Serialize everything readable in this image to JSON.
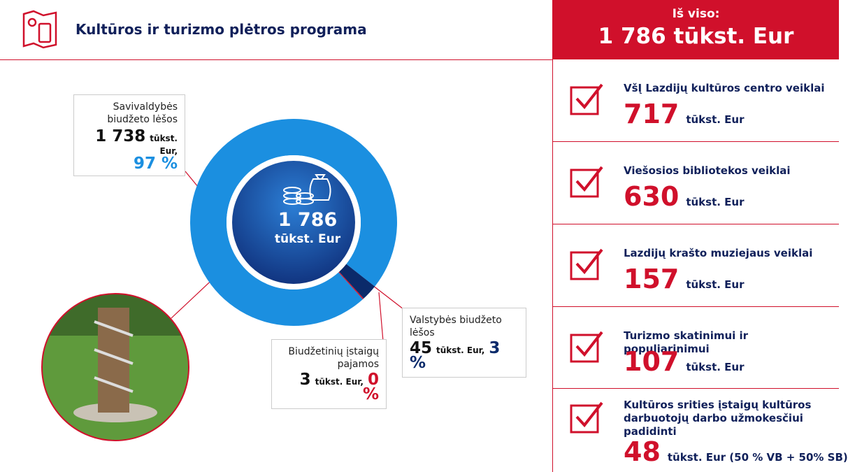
{
  "header": {
    "title": "Kultūros ir turizmo plėtros programa"
  },
  "summary": {
    "label": "Iš viso:",
    "amount": "1 786 tūkst. Eur"
  },
  "chart_data": {
    "type": "pie",
    "categories": [
      "Savivaldybės biudžeto lėšos",
      "Valstybės biudžeto lėšos",
      "Biudžetinių įstaigų pajamos"
    ],
    "values": [
      1738,
      45,
      3
    ],
    "value_labels": [
      "1 738",
      "45",
      "3"
    ],
    "unit_label": "tūkst. Eur,",
    "shares": [
      97,
      3,
      0
    ],
    "share_labels": [
      "97 %",
      "3 %",
      "0 %"
    ],
    "colors": [
      "#1b8fe0",
      "#0b2a6a",
      "#d0102b"
    ],
    "total": {
      "value": 1786,
      "label": "1 786"
    },
    "total_unit": "tūkst. Eur"
  },
  "items": [
    {
      "label": "VšĮ Lazdijų kultūros centro veiklai",
      "amount": "717",
      "unit": "tūkst. Eur"
    },
    {
      "label": "Viešosios bibliotekos veiklai",
      "amount": "630",
      "unit": "tūkst. Eur"
    },
    {
      "label": "Lazdijų krašto muziejaus veiklai",
      "amount": "157",
      "unit": "tūkst. Eur"
    },
    {
      "label": "Turizmo skatinimui ir populiarinimui",
      "amount": "107",
      "unit": "tūkst. Eur"
    },
    {
      "label": "Kultūros srities įstaigų kultūros darbuotojų darbo užmokesčiui padidinti",
      "amount": "48",
      "unit": "tūkst. Eur (50 % VB + 50% SB)"
    }
  ]
}
